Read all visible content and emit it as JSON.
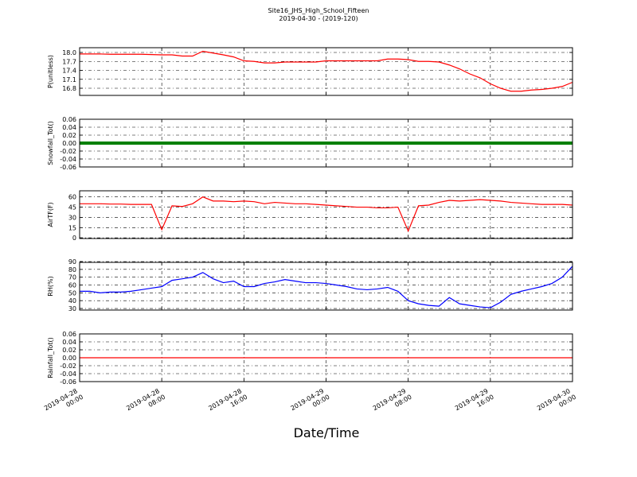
{
  "figure": {
    "title": "Site16_JHS_High_School_Fifteen",
    "subtitle": "2019-04-30 - (2019-120)",
    "xlabel": "Date/Time",
    "xlim": [
      "2019-04-28 00:00",
      "2019-04-30 00:00"
    ],
    "xticks": [
      "2019-04-28 00:00",
      "2019-04-28 08:00",
      "2019-04-28 16:00",
      "2019-04-29 00:00",
      "2019-04-29 08:00",
      "2019-04-29 16:00",
      "2019-04-30 00:00"
    ],
    "x": [
      "2019-04-28 00:00",
      "2019-04-28 01:00",
      "2019-04-28 02:00",
      "2019-04-28 03:00",
      "2019-04-28 04:00",
      "2019-04-28 05:00",
      "2019-04-28 06:00",
      "2019-04-28 07:00",
      "2019-04-28 08:00",
      "2019-04-28 09:00",
      "2019-04-28 10:00",
      "2019-04-28 11:00",
      "2019-04-28 12:00",
      "2019-04-28 13:00",
      "2019-04-28 14:00",
      "2019-04-28 15:00",
      "2019-04-28 16:00",
      "2019-04-28 17:00",
      "2019-04-28 18:00",
      "2019-04-28 19:00",
      "2019-04-28 20:00",
      "2019-04-28 21:00",
      "2019-04-28 22:00",
      "2019-04-28 23:00",
      "2019-04-29 00:00",
      "2019-04-29 01:00",
      "2019-04-29 02:00",
      "2019-04-29 03:00",
      "2019-04-29 04:00",
      "2019-04-29 05:00",
      "2019-04-29 06:00",
      "2019-04-29 07:00",
      "2019-04-29 08:00",
      "2019-04-29 09:00",
      "2019-04-29 10:00",
      "2019-04-29 11:00",
      "2019-04-29 12:00",
      "2019-04-29 13:00",
      "2019-04-29 14:00",
      "2019-04-29 15:00",
      "2019-04-29 16:00",
      "2019-04-29 17:00",
      "2019-04-29 18:00",
      "2019-04-29 19:00",
      "2019-04-29 20:00",
      "2019-04-29 21:00",
      "2019-04-29 22:00",
      "2019-04-29 23:00",
      "2019-04-30 00:00"
    ],
    "grid": true
  },
  "chart_data": [
    {
      "type": "line",
      "ylabel": "P(unitless)",
      "ylim": [
        16.56,
        18.16
      ],
      "yticks": [
        16.8,
        17.1,
        17.4,
        17.7,
        {
          "value": 18,
          "label": "18.0"
        }
      ],
      "series": [
        {
          "color": "#ff0000",
          "values": [
            17.95,
            17.95,
            17.95,
            17.94,
            17.94,
            17.94,
            17.94,
            17.93,
            17.92,
            17.92,
            17.88,
            17.88,
            18.04,
            17.98,
            17.92,
            17.85,
            17.72,
            17.7,
            17.65,
            17.65,
            17.68,
            17.68,
            17.68,
            17.68,
            17.72,
            17.72,
            17.72,
            17.72,
            17.72,
            17.72,
            17.78,
            17.78,
            17.76,
            17.7,
            17.7,
            17.68,
            17.58,
            17.45,
            17.28,
            17.15,
            16.95,
            16.8,
            16.7,
            16.7,
            16.74,
            16.76,
            16.8,
            16.86,
            17.0
          ]
        }
      ]
    },
    {
      "type": "line",
      "ylabel": "Snowfall_Tot()",
      "ylim": [
        -0.06,
        0.06
      ],
      "yticks": [
        -0.06,
        -0.04,
        -0.02,
        {
          "value": 0,
          "label": "0.00"
        },
        0.02,
        0.04,
        0.06
      ],
      "series": [
        {
          "color": "#008000",
          "width": 4,
          "values": [
            0,
            0,
            0,
            0,
            0,
            0,
            0,
            0,
            0,
            0,
            0,
            0,
            0,
            0,
            0,
            0,
            0,
            0,
            0,
            0,
            0,
            0,
            0,
            0,
            0,
            0,
            0,
            0,
            0,
            0,
            0,
            0,
            0,
            0,
            0,
            0,
            0,
            0,
            0,
            0,
            0,
            0,
            0,
            0,
            0,
            0,
            0,
            0,
            0
          ]
        }
      ]
    },
    {
      "type": "line",
      "ylabel": "AirTF(F)",
      "ylim": [
        -1,
        69
      ],
      "yticks": [
        0,
        15,
        30,
        45,
        60
      ],
      "series": [
        {
          "color": "#ff0000",
          "values": [
            50,
            50,
            50,
            49.5,
            49.5,
            49,
            49,
            49,
            12,
            47,
            46,
            50,
            60,
            54,
            54,
            53,
            54,
            53,
            50,
            52,
            51,
            50,
            50,
            49,
            48,
            47,
            46,
            45,
            45,
            44,
            44,
            45,
            10,
            47,
            48,
            52,
            55,
            54,
            55,
            56,
            55,
            54,
            52,
            51,
            50,
            49,
            49,
            49,
            48
          ]
        }
      ]
    },
    {
      "type": "line",
      "ylabel": "RH(%)",
      "ylim": [
        28,
        89
      ],
      "yticks": [
        30,
        40,
        50,
        60,
        70,
        80,
        90
      ],
      "series": [
        {
          "color": "#0000ff",
          "values": [
            52,
            52,
            50,
            51,
            51,
            52,
            54,
            56,
            58,
            66,
            68,
            70,
            76,
            68,
            63,
            65,
            58,
            58,
            62,
            64,
            67,
            65,
            63,
            63,
            62,
            60,
            58,
            55,
            54,
            55,
            57,
            52,
            40,
            36,
            34,
            33,
            44,
            36,
            34,
            32,
            31,
            38,
            48,
            52,
            55,
            58,
            62,
            70,
            84
          ]
        }
      ]
    },
    {
      "type": "line",
      "ylabel": "Rainfall_Tot()",
      "ylim": [
        -0.06,
        0.06
      ],
      "yticks": [
        -0.06,
        -0.04,
        -0.02,
        {
          "value": 0,
          "label": "0.00"
        },
        0.02,
        0.04,
        0.06
      ],
      "series": [
        {
          "color": "#ff0000",
          "values": [
            0,
            0,
            0,
            0,
            0,
            0,
            0,
            0,
            0,
            0,
            0,
            0,
            0,
            0,
            0,
            0,
            0,
            0,
            0,
            0,
            0,
            0,
            0,
            0,
            0,
            0,
            0,
            0,
            0,
            0,
            0,
            0,
            0,
            0,
            0,
            0,
            0,
            0,
            0,
            0,
            0,
            0,
            0,
            0,
            0,
            0,
            0,
            0,
            0
          ]
        }
      ]
    }
  ]
}
